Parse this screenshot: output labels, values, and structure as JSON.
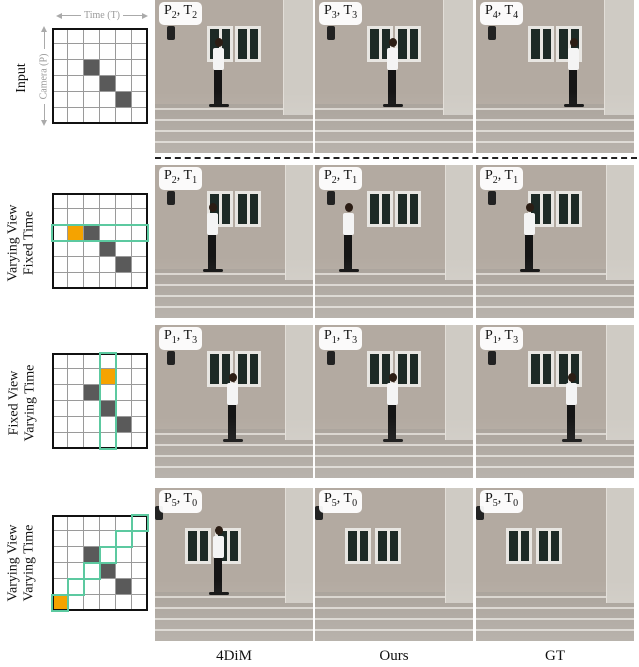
{
  "axes": {
    "time_label": "Time (T)",
    "camera_label": "Camera (P)"
  },
  "rows": [
    {
      "label_line1": "Input",
      "label_line2": "",
      "grid": {
        "dark": [
          [
            2,
            2
          ],
          [
            3,
            3
          ],
          [
            4,
            4
          ]
        ],
        "orange": [],
        "highlights": []
      },
      "tags": [
        {
          "p": "P",
          "p_sub": "2",
          "t": "T",
          "t_sub": "2"
        },
        {
          "p": "P",
          "p_sub": "3",
          "t": "T",
          "t_sub": "3"
        },
        {
          "p": "P",
          "p_sub": "4",
          "t": "T",
          "t_sub": "4"
        }
      ]
    },
    {
      "label_line1": "Varying View",
      "label_line2": "Fixed Time",
      "grid": {
        "dark": [
          [
            2,
            2
          ],
          [
            3,
            3
          ],
          [
            4,
            4
          ]
        ],
        "orange": [
          [
            2,
            1
          ]
        ],
        "highlights": [
          [
            2,
            0,
            2,
            5
          ]
        ]
      },
      "tags": [
        {
          "p": "P",
          "p_sub": "2",
          "t": "T",
          "t_sub": "1"
        },
        {
          "p": "P",
          "p_sub": "2",
          "t": "T",
          "t_sub": "1"
        },
        {
          "p": "P",
          "p_sub": "2",
          "t": "T",
          "t_sub": "1"
        }
      ]
    },
    {
      "label_line1": "Fixed View",
      "label_line2": "Varying Time",
      "grid": {
        "dark": [
          [
            2,
            2
          ],
          [
            3,
            3
          ],
          [
            4,
            4
          ]
        ],
        "orange": [
          [
            1,
            3
          ]
        ],
        "highlights": [
          [
            0,
            3,
            5,
            3
          ]
        ]
      },
      "tags": [
        {
          "p": "P",
          "p_sub": "1",
          "t": "T",
          "t_sub": "3"
        },
        {
          "p": "P",
          "p_sub": "1",
          "t": "T",
          "t_sub": "3"
        },
        {
          "p": "P",
          "p_sub": "1",
          "t": "T",
          "t_sub": "3"
        }
      ]
    },
    {
      "label_line1": "Varying View",
      "label_line2": "Varying Time",
      "grid": {
        "dark": [
          [
            2,
            2
          ],
          [
            3,
            3
          ],
          [
            4,
            4
          ]
        ],
        "orange": [
          [
            5,
            0
          ]
        ],
        "highlights": [
          [
            5,
            0,
            5,
            0
          ],
          [
            4,
            1,
            4,
            1
          ],
          [
            3,
            2,
            3,
            2
          ],
          [
            2,
            3,
            2,
            3
          ],
          [
            1,
            4,
            1,
            4
          ],
          [
            0,
            5,
            0,
            5
          ]
        ]
      },
      "tags": [
        {
          "p": "P",
          "p_sub": "5",
          "t": "T",
          "t_sub": "0"
        },
        {
          "p": "P",
          "p_sub": "5",
          "t": "T",
          "t_sub": "0"
        },
        {
          "p": "P",
          "p_sub": "5",
          "t": "T",
          "t_sub": "0"
        }
      ]
    }
  ],
  "columns": [
    "4DiM",
    "Ours",
    "GT"
  ],
  "colors": {
    "dark_cell": "#5a5a5a",
    "orange_cell": "#f5a300",
    "highlight": "#5cc9a0"
  }
}
